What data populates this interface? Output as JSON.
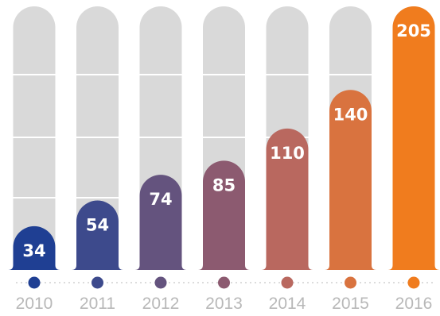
{
  "chart_data": {
    "type": "bar",
    "categories": [
      "2010",
      "2011",
      "2012",
      "2013",
      "2014",
      "2015",
      "2016"
    ],
    "values": [
      34,
      54,
      74,
      85,
      110,
      140,
      205
    ],
    "ylim": [
      0,
      205
    ],
    "grid": true,
    "colors": [
      "#1f3f93",
      "#3d4a8c",
      "#64537e",
      "#8c5a70",
      "#b9685f",
      "#d9733f",
      "#f07c1e"
    ],
    "track_color": "#d9d9d9",
    "grid_color": "#ffffff",
    "axis_dot_line_color": "#d0d0d0",
    "tick_label_color": "#b8b8b8",
    "value_label_color": "#ffffff"
  }
}
